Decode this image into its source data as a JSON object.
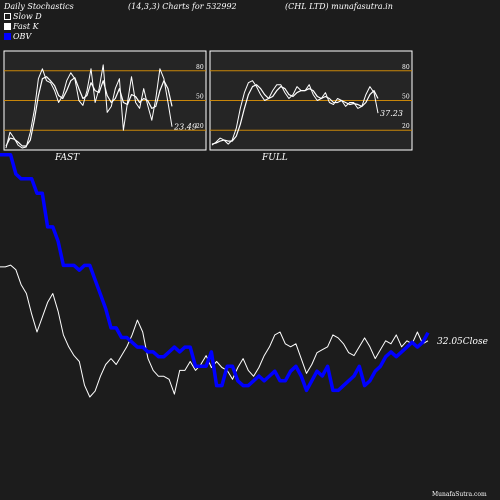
{
  "header": {
    "title": "Daily Stochastics",
    "params": "(14,3,3) Charts for 532992",
    "company": "(CHL LTD) munafasutra.in"
  },
  "legend": [
    {
      "label": "Slow D",
      "color": "#ffffff",
      "style": "hollow"
    },
    {
      "label": "Fast K",
      "color": "#ffffff",
      "style": "filled"
    },
    {
      "label": "OBV",
      "color": "#0000ff",
      "style": "filled"
    }
  ],
  "watermark": "MunafaSutra.com",
  "chart_data": [
    {
      "type": "line",
      "title": "FAST",
      "y_ticks": [
        "80",
        "50",
        "20"
      ],
      "reference_levels": [
        80,
        50,
        20
      ],
      "ylim": [
        0,
        100
      ],
      "last_value_label": "23.49",
      "series": [
        {
          "name": "Fast K",
          "color": "#ffffff",
          "values": [
            2,
            18,
            12,
            5,
            2,
            3,
            18,
            40,
            72,
            82,
            70,
            68,
            60,
            48,
            55,
            70,
            78,
            72,
            50,
            45,
            60,
            82,
            48,
            62,
            86,
            38,
            44,
            62,
            72,
            20,
            48,
            74,
            48,
            42,
            62,
            45,
            30,
            52,
            82,
            72,
            48,
            23.49
          ]
        },
        {
          "name": "Slow D",
          "color": "#ffffff",
          "values": [
            4,
            12,
            11,
            8,
            4,
            4,
            10,
            30,
            55,
            72,
            74,
            70,
            65,
            55,
            52,
            60,
            70,
            73,
            62,
            52,
            55,
            68,
            60,
            58,
            70,
            55,
            48,
            52,
            62,
            48,
            46,
            56,
            54,
            48,
            52,
            50,
            42,
            44,
            60,
            70,
            62,
            44
          ]
        }
      ]
    },
    {
      "type": "line",
      "title": "FULL",
      "y_ticks": [
        "80",
        "50",
        "20"
      ],
      "reference_levels": [
        80,
        50,
        20
      ],
      "ylim": [
        0,
        100
      ],
      "last_value_label": "37.23",
      "series": [
        {
          "name": "Full K",
          "color": "#ffffff",
          "values": [
            5,
            8,
            12,
            10,
            6,
            10,
            22,
            42,
            58,
            68,
            70,
            64,
            56,
            50,
            52,
            60,
            66,
            66,
            58,
            52,
            56,
            64,
            60,
            60,
            66,
            56,
            50,
            52,
            58,
            48,
            46,
            52,
            50,
            44,
            48,
            48,
            42,
            44,
            56,
            64,
            58,
            37.23
          ]
        },
        {
          "name": "Full D",
          "color": "#ffffff",
          "values": [
            6,
            7,
            9,
            10,
            9,
            9,
            14,
            26,
            42,
            56,
            64,
            66,
            62,
            56,
            52,
            54,
            60,
            64,
            62,
            56,
            54,
            58,
            60,
            60,
            62,
            60,
            54,
            52,
            54,
            52,
            48,
            48,
            50,
            48,
            46,
            47,
            46,
            44,
            48,
            56,
            60,
            52
          ]
        }
      ]
    },
    {
      "type": "line",
      "title": "",
      "last_close_label": "32.05",
      "close_suffix": "Close",
      "series": [
        {
          "name": "Close",
          "color": "#ffffff",
          "values": [
            44.5,
            44.5,
            44.8,
            44.0,
            41.5,
            40.0,
            36.5,
            33.5,
            36.0,
            38.5,
            40.0,
            37.0,
            33.0,
            31.0,
            29.5,
            28.5,
            24.5,
            22.5,
            23.5,
            26.0,
            28.0,
            29.0,
            28.0,
            29.5,
            31.0,
            33.0,
            35.5,
            33.5,
            29.0,
            27.0,
            26.0,
            26.0,
            25.5,
            23.0,
            27.0,
            27.0,
            28.5,
            27.0,
            28.0,
            29.5,
            27.5,
            28.5,
            27.5,
            27.0,
            25.5,
            27.5,
            29.0,
            27.0,
            26.0,
            27.5,
            29.5,
            31.0,
            33.0,
            33.5,
            31.5,
            31.0,
            31.5,
            29.0,
            26.5,
            28.0,
            30.0,
            30.5,
            31.0,
            33.0,
            32.5,
            31.5,
            30.0,
            29.5,
            31.0,
            32.5,
            31.0,
            29.0,
            30.5,
            32.0,
            31.5,
            33.0,
            31.0,
            32.0,
            31.5,
            33.5,
            31.5,
            32.0
          ]
        },
        {
          "name": "OBV",
          "color": "#0000ff",
          "values": [
            91,
            91,
            91,
            87,
            86,
            86,
            86,
            83,
            83,
            76,
            76,
            73,
            68,
            68,
            68,
            67,
            68,
            68,
            65,
            62,
            59,
            55,
            55,
            53,
            53,
            52,
            51,
            51,
            50,
            50,
            49,
            49,
            50,
            51,
            50,
            51,
            51,
            47,
            47,
            47,
            50,
            43,
            43,
            47,
            47,
            44,
            43,
            43,
            44,
            45,
            44,
            45,
            46,
            44,
            44,
            46,
            47,
            45,
            42,
            44,
            46,
            45,
            47,
            42,
            42,
            43,
            44,
            45,
            47,
            43,
            44,
            46,
            47,
            49,
            50,
            49,
            50,
            51,
            52,
            51,
            52,
            54
          ]
        }
      ]
    }
  ]
}
